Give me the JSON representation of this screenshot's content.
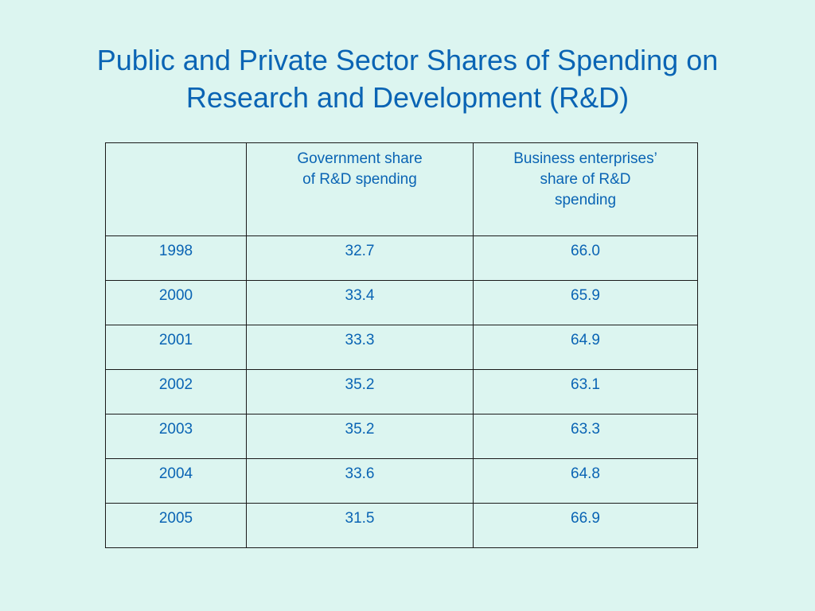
{
  "slide": {
    "title_line1": "Public and Private Sector Shares of Spending on",
    "title_line2": "Research and Development (R&D)"
  },
  "table": {
    "columns": [
      {
        "lines": [
          ""
        ]
      },
      {
        "lines": [
          "Government share",
          "of R&D spending"
        ]
      },
      {
        "lines": [
          "Business enterprises’",
          "share of R&D",
          "spending"
        ]
      }
    ],
    "rows": [
      {
        "year": "1998",
        "government": "32.7",
        "business": "66.0"
      },
      {
        "year": "2000",
        "government": "33.4",
        "business": "65.9"
      },
      {
        "year": "2001",
        "government": "33.3",
        "business": "64.9"
      },
      {
        "year": "2002",
        "government": "35.2",
        "business": "63.1"
      },
      {
        "year": "2003",
        "government": "35.2",
        "business": "63.3"
      },
      {
        "year": "2004",
        "government": "33.6",
        "business": "64.8"
      },
      {
        "year": "2005",
        "government": "31.5",
        "business": "66.9"
      }
    ]
  },
  "colors": {
    "background": "#dcf5f0",
    "text": "#0a64b4",
    "border": "#1a1a1a"
  }
}
